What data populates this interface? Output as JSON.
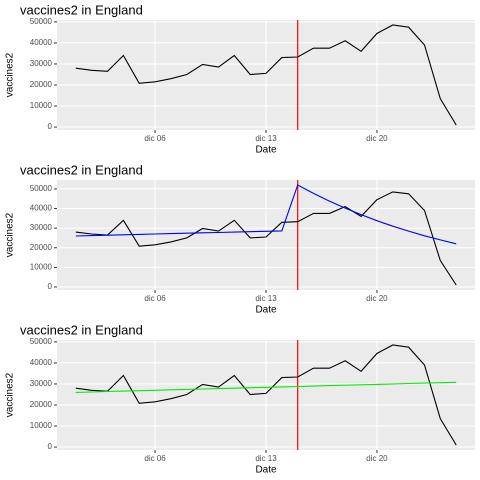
{
  "chart_data": [
    {
      "type": "line",
      "title": "vaccines2 in England",
      "x_label": "Date",
      "y_label": "vaccines2",
      "x": [
        "dic 01",
        "dic 02",
        "dic 03",
        "dic 04",
        "dic 05",
        "dic 06",
        "dic 07",
        "dic 08",
        "dic 09",
        "dic 10",
        "dic 11",
        "dic 12",
        "dic 13",
        "dic 14",
        "dic 15",
        "dic 16",
        "dic 17",
        "dic 18",
        "dic 19",
        "dic 20",
        "dic 21",
        "dic 22",
        "dic 23",
        "dic 24",
        "dic 25"
      ],
      "xticks": [
        "dic 06",
        "dic 13",
        "dic 20"
      ],
      "series": [
        {
          "color": "#000000",
          "values": [
            28000,
            27000,
            26500,
            34000,
            20800,
            21500,
            23000,
            25000,
            29800,
            28500,
            34000,
            25000,
            25500,
            33000,
            33300,
            37500,
            37500,
            41000,
            36000,
            44500,
            48500,
            47500,
            39000,
            13500,
            1000
          ]
        }
      ],
      "vline": {
        "x": "dic 15",
        "color": "#ff0000"
      },
      "ylim": [
        -1400,
        50900
      ],
      "yticks": [
        0,
        10000,
        20000,
        30000,
        40000,
        50000
      ]
    },
    {
      "type": "line",
      "title": "vaccines2 in England",
      "x_label": "Date",
      "y_label": "vaccines2",
      "x": [
        "dic 01",
        "dic 02",
        "dic 03",
        "dic 04",
        "dic 05",
        "dic 06",
        "dic 07",
        "dic 08",
        "dic 09",
        "dic 10",
        "dic 11",
        "dic 12",
        "dic 13",
        "dic 14",
        "dic 15",
        "dic 16",
        "dic 17",
        "dic 18",
        "dic 19",
        "dic 20",
        "dic 21",
        "dic 22",
        "dic 23",
        "dic 24",
        "dic 25"
      ],
      "xticks": [
        "dic 06",
        "dic 13",
        "dic 20"
      ],
      "series": [
        {
          "color": "#000000",
          "values": [
            28000,
            27000,
            26500,
            34000,
            20800,
            21500,
            23000,
            25000,
            29800,
            28500,
            34000,
            25000,
            25500,
            33000,
            33300,
            37500,
            37500,
            41000,
            36000,
            44500,
            48500,
            47500,
            39000,
            13500,
            1000
          ]
        },
        {
          "color": "#0000ff",
          "values": [
            26000,
            26200,
            26400,
            26600,
            26800,
            27000,
            27200,
            27400,
            27600,
            27800,
            28000,
            28200,
            28400,
            28600,
            52000,
            47700,
            43800,
            40200,
            36900,
            33800,
            31000,
            28500,
            26100,
            24000,
            22000
          ]
        }
      ],
      "vline": {
        "x": "dic 15",
        "color": "#ff0000"
      },
      "ylim": [
        -1550,
        54550
      ],
      "yticks": [
        0,
        10000,
        20000,
        30000,
        40000,
        50000
      ]
    },
    {
      "type": "line",
      "title": "vaccines2 in England",
      "x_label": "Date",
      "y_label": "vaccines2",
      "x": [
        "dic 01",
        "dic 02",
        "dic 03",
        "dic 04",
        "dic 05",
        "dic 06",
        "dic 07",
        "dic 08",
        "dic 09",
        "dic 10",
        "dic 11",
        "dic 12",
        "dic 13",
        "dic 14",
        "dic 15",
        "dic 16",
        "dic 17",
        "dic 18",
        "dic 19",
        "dic 20",
        "dic 21",
        "dic 22",
        "dic 23",
        "dic 24",
        "dic 25"
      ],
      "xticks": [
        "dic 06",
        "dic 13",
        "dic 20"
      ],
      "series": [
        {
          "color": "#000000",
          "values": [
            28000,
            27000,
            26500,
            34000,
            20800,
            21500,
            23000,
            25000,
            29800,
            28500,
            34000,
            25000,
            25500,
            33000,
            33300,
            37500,
            37500,
            41000,
            36000,
            44500,
            48500,
            47500,
            39000,
            13500,
            1000
          ]
        },
        {
          "color": "#00ee00",
          "values": [
            26000,
            26200,
            26400,
            26600,
            26800,
            27000,
            27200,
            27400,
            27600,
            27800,
            28000,
            28200,
            28400,
            28600,
            28800,
            29000,
            29200,
            29400,
            29600,
            29800,
            30000,
            30200,
            30400,
            30600,
            30800
          ]
        }
      ],
      "vline": {
        "x": "dic 15",
        "color": "#ff0000"
      },
      "ylim": [
        -1400,
        50900
      ],
      "yticks": [
        0,
        10000,
        20000,
        30000,
        40000,
        50000
      ]
    }
  ]
}
